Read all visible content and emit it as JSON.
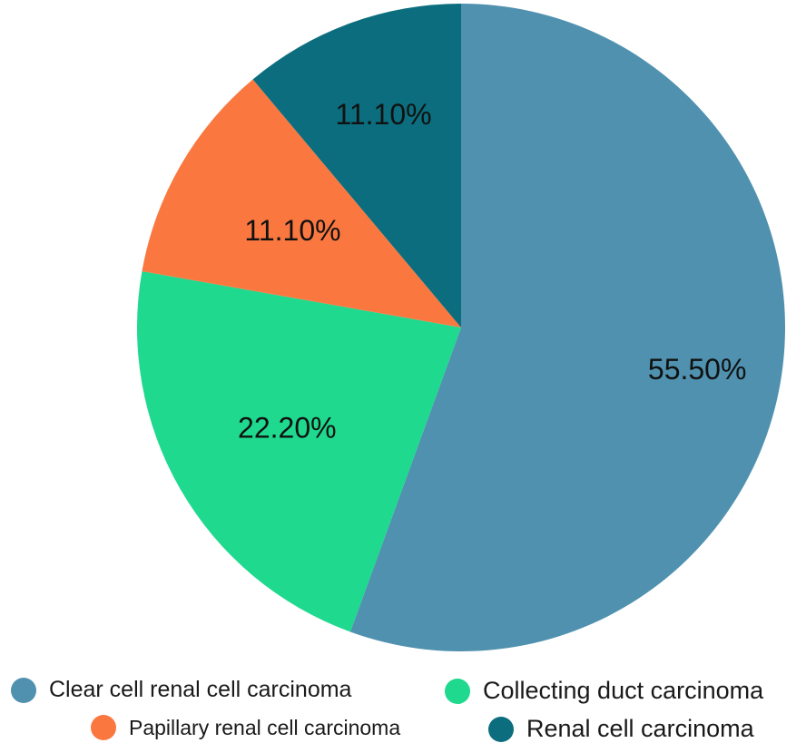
{
  "chart_data": {
    "type": "pie",
    "slices": [
      {
        "name": "Clear cell renal cell carcinoma",
        "value": 55.5,
        "label": "55.50%",
        "color": "#4f91af"
      },
      {
        "name": "Collecting duct carcinoma",
        "value": 22.2,
        "label": "22.20%",
        "color": "#1ed98e"
      },
      {
        "name": "Papillary renal cell carcinoma",
        "value": 11.1,
        "label": "11.10%",
        "color": "#fa7840"
      },
      {
        "name": "Renal cell carcinoma",
        "value": 11.1,
        "label": "11.10%",
        "color": "#0b6d7d"
      }
    ],
    "start_angle": "12 o'clock",
    "direction": "clockwise",
    "legend_position": "bottom"
  }
}
